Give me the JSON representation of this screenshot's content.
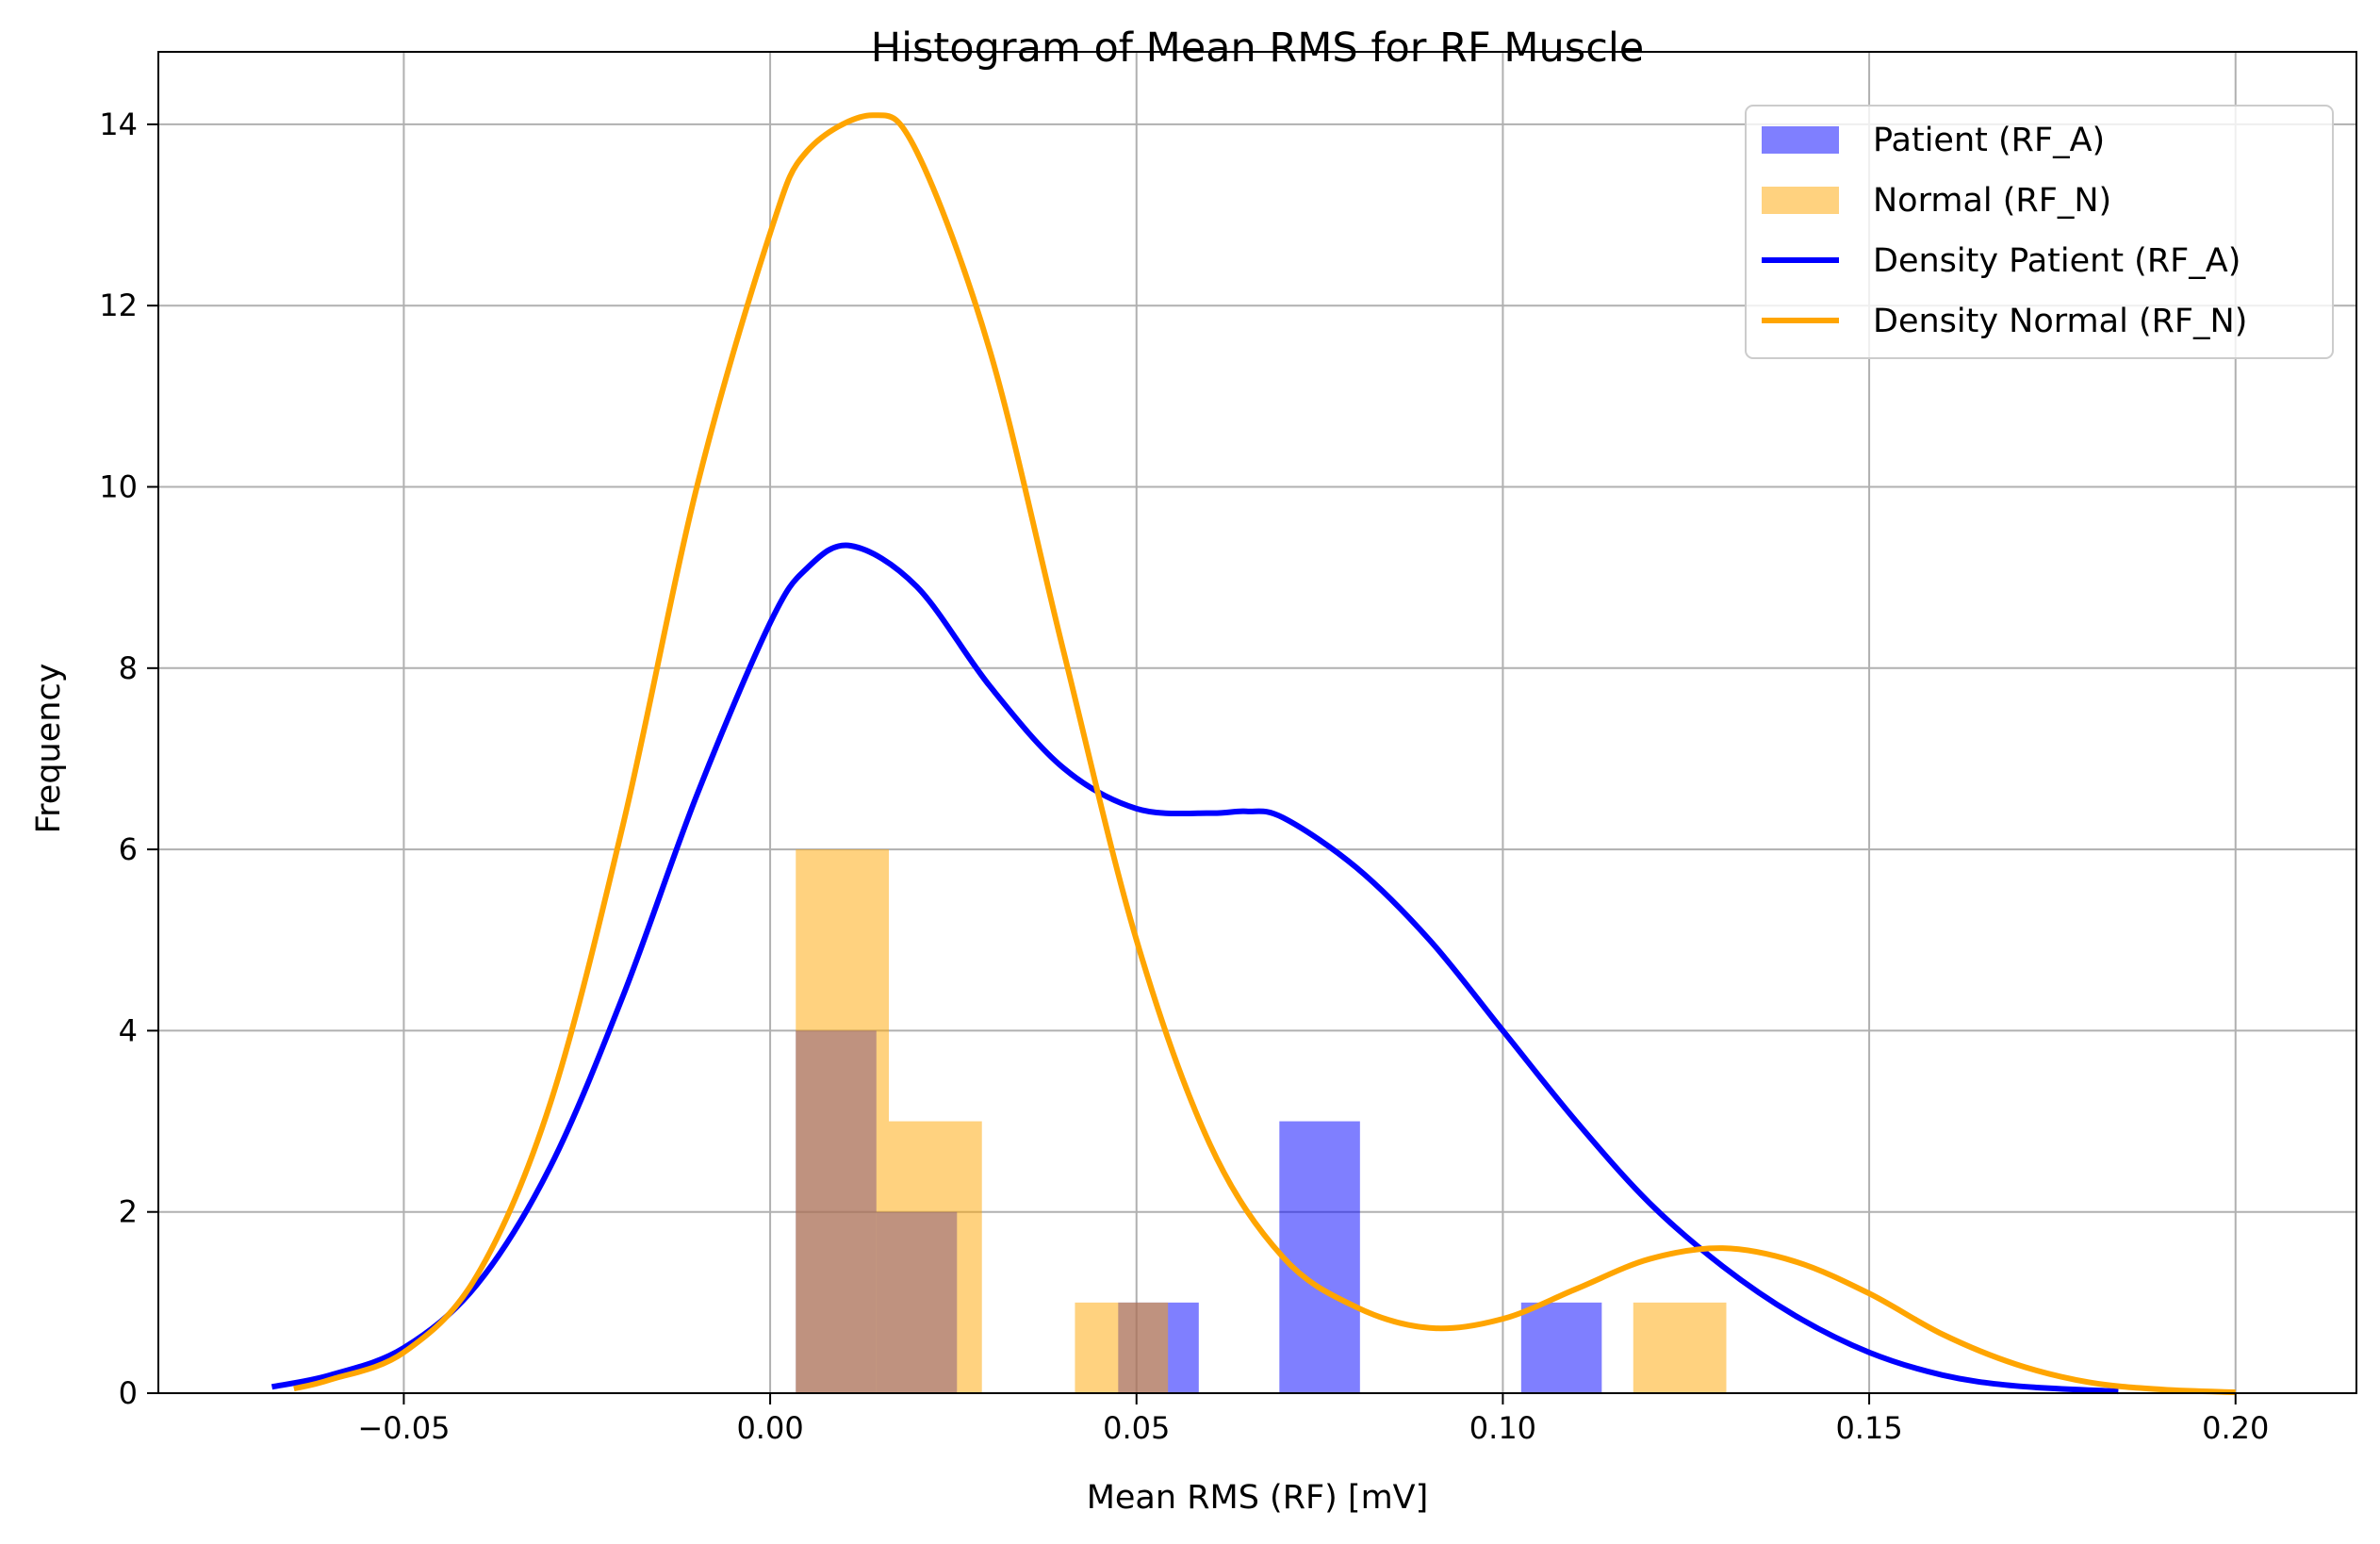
{
  "chart_data": {
    "type": "histogram",
    "title": "Histogram of Mean RMS for RF Muscle",
    "xlabel": "Mean RMS (RF) [mV]",
    "ylabel": "Frequency",
    "xlim": [
      -0.0835,
      0.2165
    ],
    "ylim": [
      0,
      14.8
    ],
    "xticks": [
      -0.05,
      0.0,
      0.05,
      0.1,
      0.15,
      0.2
    ],
    "xtick_labels": [
      "−0.05",
      "0.00",
      "0.05",
      "0.10",
      "0.15",
      "0.20"
    ],
    "yticks": [
      0,
      2,
      4,
      6,
      8,
      10,
      12,
      14
    ],
    "ytick_labels": [
      "0",
      "2",
      "4",
      "6",
      "8",
      "10",
      "12",
      "14"
    ],
    "grid": true,
    "legend_position": "top-right",
    "series": [
      {
        "name": "Patient (RF_A)",
        "kind": "histogram",
        "color": "#0000ff",
        "alpha": 0.5,
        "bins": [
          {
            "x0": 0.0035,
            "x1": 0.0145,
            "count": 4
          },
          {
            "x0": 0.0145,
            "x1": 0.0255,
            "count": 2
          },
          {
            "x0": 0.0475,
            "x1": 0.0585,
            "count": 1
          },
          {
            "x0": 0.0695,
            "x1": 0.0805,
            "count": 3
          },
          {
            "x0": 0.1025,
            "x1": 0.1135,
            "count": 1
          }
        ]
      },
      {
        "name": "Normal (RF_N)",
        "kind": "histogram",
        "color": "#ffa500",
        "alpha": 0.5,
        "bins": [
          {
            "x0": 0.0035,
            "x1": 0.0162,
            "count": 6
          },
          {
            "x0": 0.0162,
            "x1": 0.0289,
            "count": 3
          },
          {
            "x0": 0.0416,
            "x1": 0.0543,
            "count": 1
          },
          {
            "x0": 0.1178,
            "x1": 0.1305,
            "count": 1
          }
        ]
      },
      {
        "name": "Density Patient (RF_A)",
        "kind": "line",
        "color": "#0000ff",
        "x": [
          -0.068,
          -0.06,
          -0.05,
          -0.04,
          -0.03,
          -0.02,
          -0.01,
          0.0,
          0.005,
          0.011,
          0.02,
          0.03,
          0.04,
          0.05,
          0.06,
          0.065,
          0.07,
          0.08,
          0.09,
          0.1,
          0.11,
          0.12,
          0.13,
          0.14,
          0.15,
          0.16,
          0.17,
          0.184
        ],
        "y": [
          0.07,
          0.2,
          0.5,
          1.2,
          2.5,
          4.4,
          6.6,
          8.5,
          9.1,
          9.35,
          8.9,
          7.8,
          6.9,
          6.45,
          6.4,
          6.42,
          6.35,
          5.8,
          5.0,
          4.0,
          3.0,
          2.1,
          1.4,
          0.85,
          0.45,
          0.2,
          0.08,
          0.02
        ]
      },
      {
        "name": "Density Normal (RF_N)",
        "kind": "line",
        "color": "#ffa500",
        "x": [
          -0.065,
          -0.06,
          -0.05,
          -0.04,
          -0.03,
          -0.02,
          -0.01,
          0.0,
          0.005,
          0.014,
          0.02,
          0.03,
          0.04,
          0.05,
          0.06,
          0.07,
          0.08,
          0.09,
          0.1,
          0.11,
          0.12,
          0.13,
          0.14,
          0.15,
          0.16,
          0.17,
          0.18,
          0.19,
          0.2
        ],
        "y": [
          0.05,
          0.15,
          0.45,
          1.3,
          3.2,
          6.3,
          10.0,
          12.8,
          13.7,
          14.1,
          13.7,
          11.5,
          8.2,
          5.0,
          2.75,
          1.5,
          0.95,
          0.72,
          0.82,
          1.15,
          1.48,
          1.6,
          1.45,
          1.1,
          0.65,
          0.32,
          0.12,
          0.04,
          0.01
        ]
      }
    ]
  }
}
